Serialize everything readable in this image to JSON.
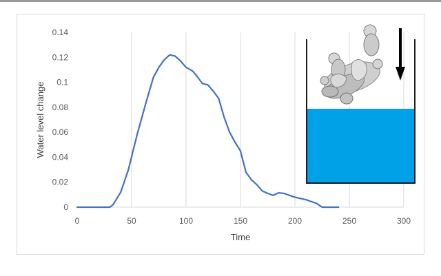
{
  "chart_data": {
    "type": "line",
    "title": "",
    "xlabel": "Time",
    "ylabel": "Water level change",
    "xlim": [
      0,
      300
    ],
    "ylim": [
      0,
      0.14
    ],
    "x_ticks": [
      0,
      50,
      100,
      150,
      200,
      250,
      300
    ],
    "x_tick_labels": [
      "0",
      "50",
      "100",
      "150",
      "200",
      "250",
      "300"
    ],
    "y_ticks": [
      0,
      0.02,
      0.04,
      0.06,
      0.08,
      0.1,
      0.12,
      0.14
    ],
    "y_tick_labels": [
      "0",
      "0.02",
      "0.04",
      "0.06",
      "0.08",
      "0.1",
      "0.12",
      "0.14"
    ],
    "grid": "vertical",
    "legend": "none",
    "series": [
      {
        "color": "#4472c4",
        "x": [
          0,
          30,
          33,
          40,
          47,
          55,
          63,
          70,
          75,
          80,
          85,
          90,
          95,
          100,
          106,
          110,
          115,
          120,
          125,
          130,
          135,
          140,
          145,
          150,
          155,
          160,
          165,
          170,
          175,
          180,
          185,
          190,
          195,
          200,
          210,
          220,
          225,
          240
        ],
        "y": [
          0,
          0,
          0.002,
          0.012,
          0.03,
          0.058,
          0.083,
          0.104,
          0.112,
          0.118,
          0.122,
          0.121,
          0.117,
          0.112,
          0.109,
          0.105,
          0.099,
          0.098,
          0.093,
          0.087,
          0.072,
          0.06,
          0.052,
          0.045,
          0.028,
          0.022,
          0.018,
          0.013,
          0.011,
          0.0095,
          0.0115,
          0.011,
          0.0095,
          0.008,
          0.006,
          0.003,
          0,
          0
        ]
      }
    ]
  },
  "inset": {
    "object_icon": "figurine-statue-icon",
    "arrow_icon": "down-arrow-icon",
    "water_color": "#00a1e6",
    "container_color": "#1a1a1a"
  }
}
